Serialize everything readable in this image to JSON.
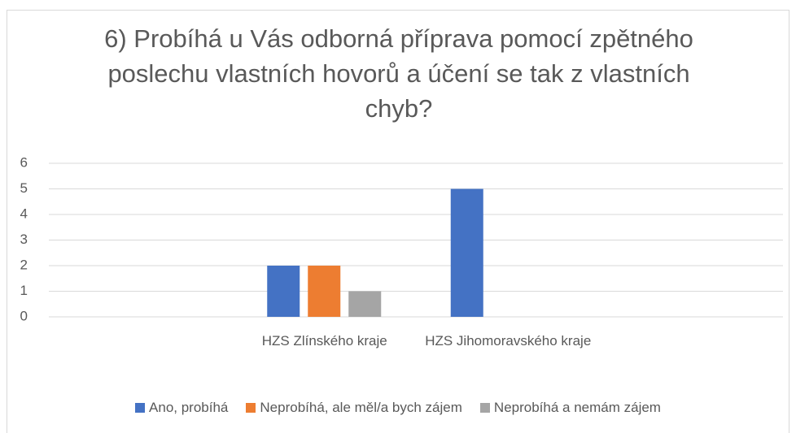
{
  "chart_data": {
    "type": "bar",
    "title": "6) Probíhá u Vás odborná příprava pomocí zpětného poslechu vlastních hovorů a účení se tak z vlastních chyb?",
    "categories": [
      null,
      "HZS Zlínského kraje",
      "HZS Jihomoravského kraje",
      null
    ],
    "series": [
      {
        "name": "Ano, probíhá",
        "color": "#4472c4",
        "values": [
          null,
          2,
          5,
          null
        ]
      },
      {
        "name": "Neprobíhá, ale měl/a bych zájem",
        "color": "#ed7d31",
        "values": [
          null,
          2,
          0,
          null
        ]
      },
      {
        "name": "Neprobíhá a nemám zájem",
        "color": "#a5a5a5",
        "values": [
          null,
          1,
          0,
          null
        ]
      }
    ],
    "ylim": [
      0,
      6
    ],
    "yticks": [
      0,
      1,
      2,
      3,
      4,
      5,
      6
    ],
    "grid": true,
    "legend": "bottom"
  }
}
